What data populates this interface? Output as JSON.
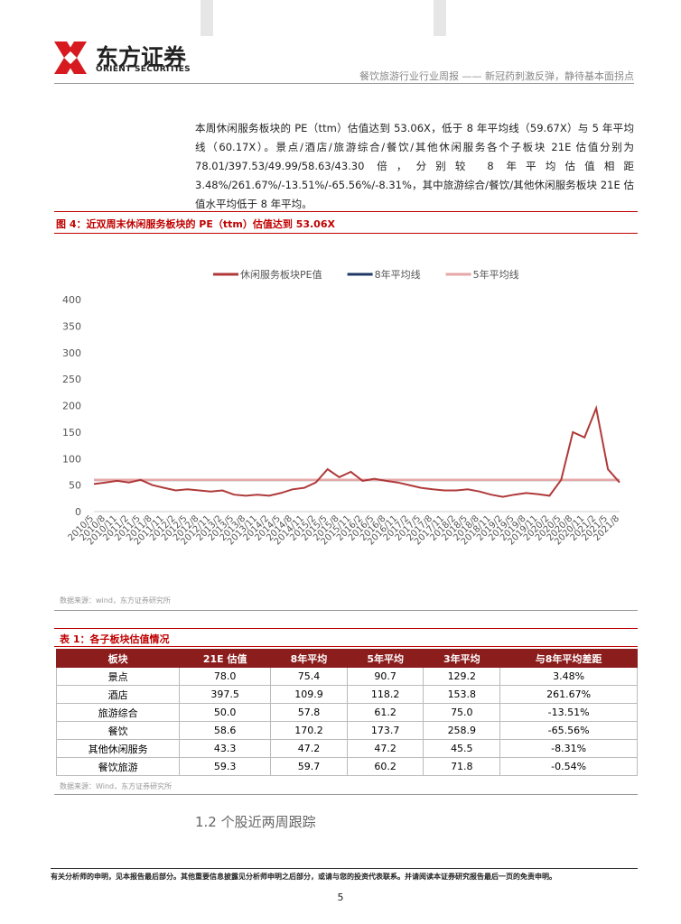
{
  "header": {
    "logo_cn": "东方证券",
    "logo_en": "ORIENT SECURITIES",
    "report_title": "餐饮旅游行业行业周报 —— 新冠药刺激反弹，静待基本面拐点"
  },
  "paragraph": "本周休闲服务板块的 PE（ttm）估值达到 53.06X，低于 8 年平均线（59.67X）与 5 年平均线（60.17X）。景点/酒店/旅游综合/餐饮/其他休闲服务各个子板块 21E 估值分别为 78.01/397.53/49.99/58.63/43.30 倍，分别较 8 年平均估值相距 3.48%/261.67%/-13.51%/-65.56%/-8.31%，其中旅游综合/餐饮/其他休闲服务板块 21E 估值水平均低于 8 年平均。",
  "figure": {
    "caption": "图 4：近双周末休闲服务板块的 PE（ttm）估值达到 53.06X",
    "source": "数据来源：wind，东方证券研究所"
  },
  "chart_data": {
    "type": "line",
    "categories": [
      "2010/5",
      "2010/8",
      "2010/11",
      "2011/2",
      "2011/5",
      "2011/8",
      "2011/11",
      "2012/2",
      "2012/5",
      "2012/8",
      "2012/11",
      "2013/2",
      "2013/5",
      "2013/8",
      "2013/11",
      "2014/2",
      "2014/5",
      "2014/8",
      "2014/11",
      "2015/2",
      "2015/5",
      "2015/8",
      "2015/11",
      "2016/2",
      "2016/5",
      "2016/8",
      "2016/11",
      "2017/2",
      "2017/5",
      "2017/8",
      "2017/11",
      "2018/2",
      "2018/5",
      "2018/8",
      "2018/11",
      "2019/2",
      "2019/5",
      "2019/8",
      "2019/11",
      "2020/2",
      "2020/5",
      "2020/8",
      "2020/11",
      "2021/2",
      "2021/5",
      "2021/8"
    ],
    "series": [
      {
        "name": "休闲服务板块PE值",
        "color": "#b03a3a",
        "values": [
          52,
          55,
          58,
          55,
          60,
          50,
          45,
          40,
          42,
          40,
          38,
          40,
          32,
          30,
          32,
          30,
          35,
          42,
          45,
          55,
          80,
          65,
          75,
          58,
          62,
          58,
          55,
          50,
          45,
          42,
          40,
          40,
          42,
          38,
          32,
          28,
          32,
          35,
          33,
          30,
          60,
          150,
          140,
          195,
          80,
          55
        ]
      },
      {
        "name": "8年平均线",
        "color": "#1f3864",
        "values": [
          59.67,
          59.67,
          59.67,
          59.67,
          59.67,
          59.67,
          59.67,
          59.67,
          59.67,
          59.67,
          59.67,
          59.67,
          59.67,
          59.67,
          59.67,
          59.67,
          59.67,
          59.67,
          59.67,
          59.67,
          59.67,
          59.67,
          59.67,
          59.67,
          59.67,
          59.67,
          59.67,
          59.67,
          59.67,
          59.67,
          59.67,
          59.67,
          59.67,
          59.67,
          59.67,
          59.67,
          59.67,
          59.67,
          59.67,
          59.67,
          59.67,
          59.67,
          59.67,
          59.67,
          59.67,
          59.67
        ]
      },
      {
        "name": "5年平均线",
        "color": "#e6a7a7",
        "values": [
          60.17,
          60.17,
          60.17,
          60.17,
          60.17,
          60.17,
          60.17,
          60.17,
          60.17,
          60.17,
          60.17,
          60.17,
          60.17,
          60.17,
          60.17,
          60.17,
          60.17,
          60.17,
          60.17,
          60.17,
          60.17,
          60.17,
          60.17,
          60.17,
          60.17,
          60.17,
          60.17,
          60.17,
          60.17,
          60.17,
          60.17,
          60.17,
          60.17,
          60.17,
          60.17,
          60.17,
          60.17,
          60.17,
          60.17,
          60.17,
          60.17,
          60.17,
          60.17,
          60.17,
          60.17,
          60.17
        ]
      }
    ],
    "ylim": [
      0,
      400
    ],
    "yticks": [
      0,
      50,
      100,
      150,
      200,
      250,
      300,
      350,
      400
    ],
    "grid": false
  },
  "table": {
    "caption": "表 1：各子板块估值情况",
    "header": [
      "板块",
      "21E 估值",
      "8年平均",
      "5年平均",
      "3年平均",
      "与8年平均差距"
    ],
    "rows": [
      [
        "景点",
        "78.0",
        "75.4",
        "90.7",
        "129.2",
        "3.48%"
      ],
      [
        "酒店",
        "397.5",
        "109.9",
        "118.2",
        "153.8",
        "261.67%"
      ],
      [
        "旅游综合",
        "50.0",
        "57.8",
        "61.2",
        "75.0",
        "-13.51%"
      ],
      [
        "餐饮",
        "58.6",
        "170.2",
        "173.7",
        "258.9",
        "-65.56%"
      ],
      [
        "其他休闲服务",
        "43.3",
        "47.2",
        "47.2",
        "45.5",
        "-8.31%"
      ],
      [
        "餐饮旅游",
        "59.3",
        "59.7",
        "60.2",
        "71.8",
        "-0.54%"
      ]
    ],
    "source": "数据来源：Wind，东方证券研究所"
  },
  "section_heading": "1.2 个股近两周跟踪",
  "footer": {
    "disclaimer": "有关分析师的申明，见本报告最后部分。其他重要信息披露见分析师申明之后部分，或请与您的投资代表联系。并请阅读本证券研究报告最后一页的免责申明。",
    "page_number": "5"
  }
}
